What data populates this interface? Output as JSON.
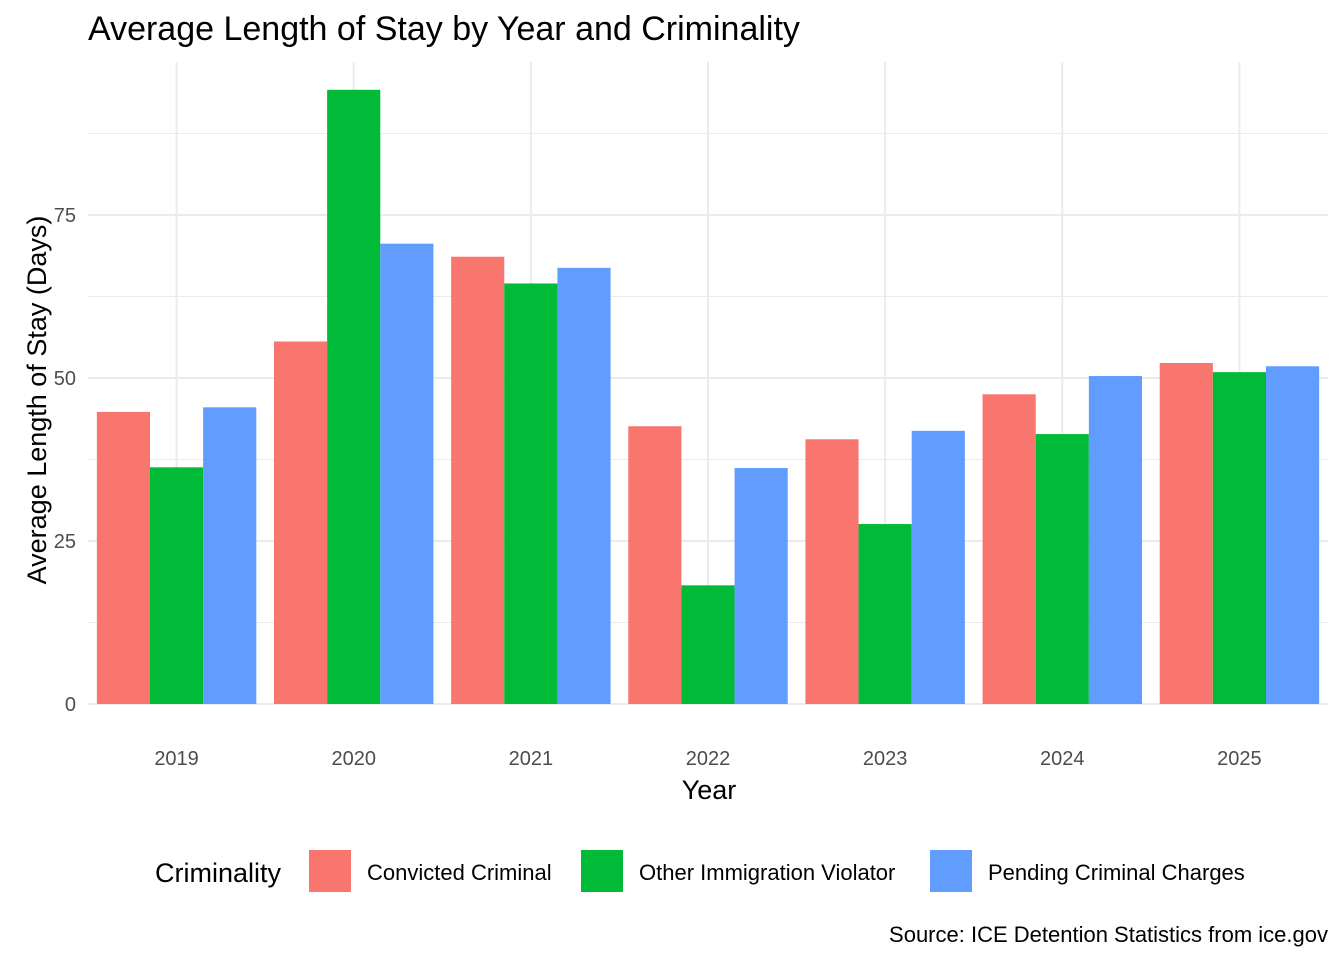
{
  "chart_data": {
    "type": "bar",
    "title": "Average Length of Stay by Year and Criminality",
    "xlabel": "Year",
    "ylabel": "Average Length of Stay (Days)",
    "caption": "Source: ICE Detention Statistics from ice.gov",
    "categories": [
      "2019",
      "2020",
      "2021",
      "2022",
      "2023",
      "2024",
      "2025"
    ],
    "series": [
      {
        "name": "Convicted Criminal",
        "color": "#F8766D",
        "values": [
          44.8,
          55.6,
          68.6,
          42.6,
          40.6,
          47.5,
          52.3
        ]
      },
      {
        "name": "Other Immigration Violator",
        "color": "#00BA38",
        "values": [
          36.3,
          94.2,
          64.5,
          18.2,
          27.6,
          41.4,
          50.9
        ]
      },
      {
        "name": "Pending Criminal Charges",
        "color": "#619CFF",
        "values": [
          45.5,
          70.6,
          66.9,
          36.2,
          41.9,
          50.3,
          51.8
        ]
      }
    ],
    "ylim": [
      0,
      98
    ],
    "yticks": [
      "0",
      "25",
      "50",
      "75"
    ],
    "legend": {
      "title": "Criminality",
      "position": "bottom"
    },
    "grid": true
  }
}
